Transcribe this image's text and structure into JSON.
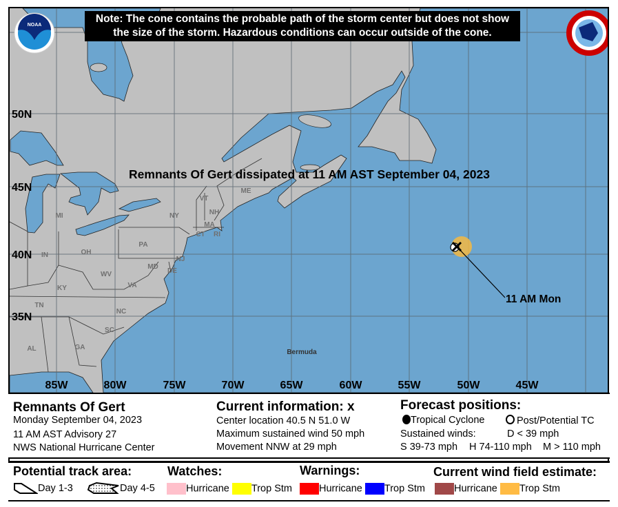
{
  "note": {
    "line1": "Note: The cone contains the probable path of the storm center but does not show",
    "line2": "the size of the storm. Hazardous conditions can occur outside of the cone."
  },
  "logos": {
    "left": "NOAA",
    "right": "NATIONAL WEATHER SERVICE"
  },
  "map": {
    "colors": {
      "water": "#6ca5cf",
      "land": "#c0c0c0",
      "grid": "#5a6670",
      "wind_field_trop_stm": "#f5b942"
    },
    "headline": "Remnants Of Gert dissipated at 11 AM AST September 04, 2023",
    "lat_labels": [
      "50N",
      "45N",
      "40N",
      "35N"
    ],
    "lon_labels": [
      "85W",
      "80W",
      "75W",
      "70W",
      "65W",
      "60W",
      "55W",
      "50W",
      "45W"
    ],
    "states": [
      "MI",
      "IN",
      "OH",
      "KY",
      "TN",
      "AL",
      "GA",
      "SC",
      "NC",
      "VA",
      "WV",
      "PA",
      "NY",
      "VT",
      "NH",
      "MA",
      "CT",
      "RI",
      "NJ",
      "DE",
      "MD",
      "ME"
    ],
    "place": "Bermuda",
    "storm": {
      "label": "11 AM Mon",
      "lat": 40.5,
      "lon": -51.0,
      "marker": "x-icon"
    }
  },
  "info": {
    "storm_name": "Remnants Of Gert",
    "date": "Monday September 04, 2023",
    "advisory": "11 AM AST Advisory 27",
    "center": "NWS National Hurricane Center",
    "current_title": "Current information: ",
    "current_marker": "x",
    "location": "Center location 40.5 N 51.0 W",
    "wind": "Maximum sustained wind 50 mph",
    "movement": "Movement NNW at 29 mph",
    "forecast_title": "Forecast positions:",
    "tc": "Tropical Cyclone",
    "ptc": "Post/Potential TC",
    "sustained": "Sustained winds:",
    "d": "D < 39 mph",
    "s": "S 39-73 mph",
    "hh": "H 74-110 mph",
    "m": "M > 110 mph"
  },
  "legend": {
    "track_title": "Potential track area:",
    "day13": "Day 1-3",
    "day45": "Day 4-5",
    "watches_title": "Watches:",
    "warnings_title": "Warnings:",
    "wind_title": "Current wind field estimate:",
    "watch_hurricane": "Hurricane",
    "watch_ts": "Trop Stm",
    "warn_hurricane": "Hurricane",
    "warn_ts": "Trop Stm",
    "wind_hurricane": "Hurricane",
    "wind_ts": "Trop Stm",
    "colors": {
      "watch_hurricane": "#ffc0cb",
      "watch_ts": "#ffff00",
      "warn_hurricane": "#ff0000",
      "warn_ts": "#0000ff",
      "wind_hurricane": "#a04848",
      "wind_ts": "#ffbb44"
    }
  }
}
